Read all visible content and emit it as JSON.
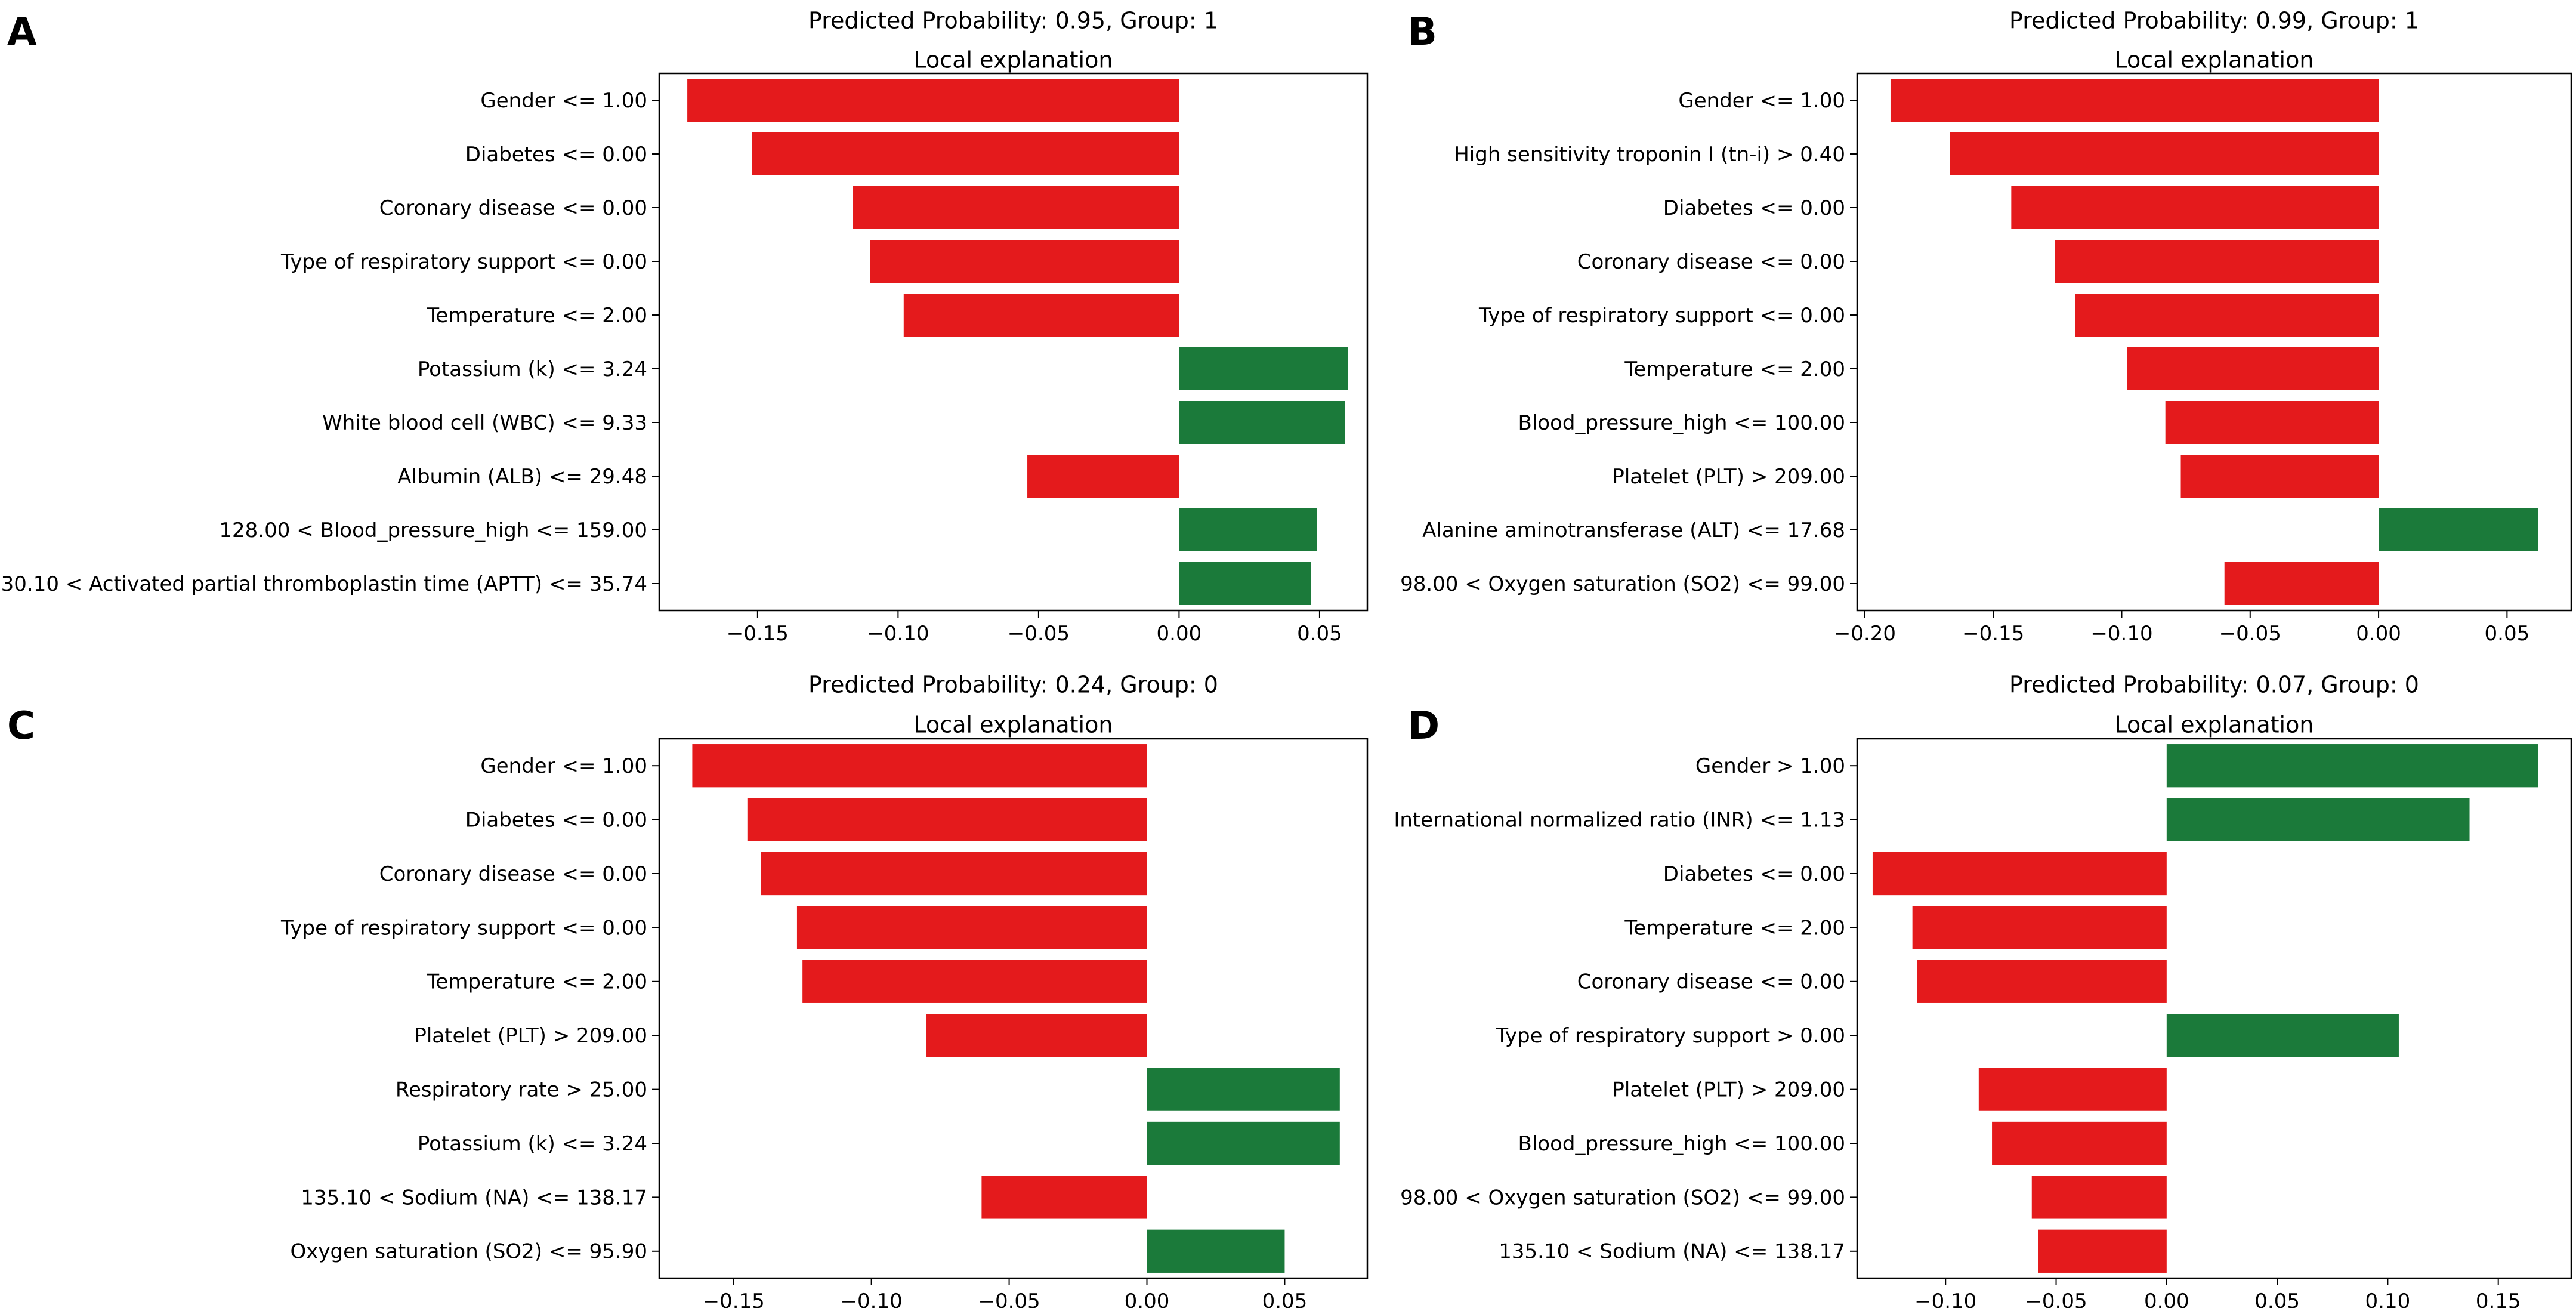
{
  "figure": {
    "colors": {
      "negative": "#e41a1c",
      "positive": "#1b7a3a",
      "axis": "#000000",
      "background": "#ffffff"
    }
  },
  "chart_data": [
    {
      "panel": "A",
      "type": "bar",
      "orientation": "horizontal",
      "title_top": "Predicted Probability: 0.95, Group: 1",
      "title": "Local explanation",
      "xlim": [
        -0.185,
        0.067
      ],
      "xticks": [
        -0.15,
        -0.1,
        -0.05,
        0.0,
        0.05
      ],
      "xtick_labels": [
        "−0.15",
        "−0.10",
        "−0.05",
        "0.00",
        "0.05"
      ],
      "categories": [
        "Gender <= 1.00",
        "Diabetes <= 0.00",
        "Coronary disease <= 0.00",
        "Type of respiratory support <= 0.00",
        "Temperature <= 2.00",
        "Potassium (k) <= 3.24",
        "White blood cell (WBC) <= 9.33",
        "Albumin (ALB) <= 29.48",
        "128.00 < Blood_pressure_high <= 159.00",
        "30.10 < Activated partial thromboplastin time (APTT) <= 35.74"
      ],
      "values": [
        -0.175,
        -0.152,
        -0.116,
        -0.11,
        -0.098,
        0.06,
        0.059,
        -0.054,
        0.049,
        0.047
      ]
    },
    {
      "panel": "B",
      "type": "bar",
      "orientation": "horizontal",
      "title_top": "Predicted Probability: 0.99, Group: 1",
      "title": "Local explanation",
      "xlim": [
        -0.203,
        0.075
      ],
      "xticks": [
        -0.2,
        -0.15,
        -0.1,
        -0.05,
        0.0,
        0.05
      ],
      "xtick_labels": [
        "−0.20",
        "−0.15",
        "−0.10",
        "−0.05",
        "0.00",
        "0.05"
      ],
      "categories": [
        "Gender <= 1.00",
        "High sensitivity troponin I (tn-i) > 0.40",
        "Diabetes <= 0.00",
        "Coronary disease <= 0.00",
        "Type of respiratory support <= 0.00",
        "Temperature <= 2.00",
        "Blood_pressure_high <= 100.00",
        "Platelet (PLT) > 209.00",
        "Alanine aminotransferase (ALT) <= 17.68",
        "98.00 < Oxygen saturation (SO2) <= 99.00"
      ],
      "values": [
        -0.19,
        -0.167,
        -0.143,
        -0.126,
        -0.118,
        -0.098,
        -0.083,
        -0.077,
        0.062,
        -0.06
      ]
    },
    {
      "panel": "C",
      "type": "bar",
      "orientation": "horizontal",
      "title_top": "Predicted Probability: 0.24, Group: 0",
      "title": "Local explanation",
      "xlim": [
        -0.177,
        0.08
      ],
      "xticks": [
        -0.15,
        -0.1,
        -0.05,
        0.0,
        0.05
      ],
      "xtick_labels": [
        "−0.15",
        "−0.10",
        "−0.05",
        "0.00",
        "0.05"
      ],
      "categories": [
        "Gender <= 1.00",
        "Diabetes <= 0.00",
        "Coronary disease <= 0.00",
        "Type of respiratory support <= 0.00",
        "Temperature <= 2.00",
        "Platelet (PLT) > 209.00",
        "Respiratory rate > 25.00",
        "Potassium (k) <= 3.24",
        "135.10 < Sodium (NA) <= 138.17",
        "Oxygen saturation (SO2) <= 95.90"
      ],
      "values": [
        -0.165,
        -0.145,
        -0.14,
        -0.127,
        -0.125,
        -0.08,
        0.07,
        0.07,
        -0.06,
        0.05
      ]
    },
    {
      "panel": "D",
      "type": "bar",
      "orientation": "horizontal",
      "title_top": "Predicted Probability: 0.07, Group: 0",
      "title": "Local explanation",
      "xlim": [
        -0.14,
        0.183
      ],
      "xticks": [
        -0.1,
        -0.05,
        0.0,
        0.05,
        0.1,
        0.15
      ],
      "xtick_labels": [
        "−0.10",
        "−0.05",
        "0.00",
        "0.05",
        "0.10",
        "0.15"
      ],
      "categories": [
        "Gender > 1.00",
        "International normalized ratio (INR) <= 1.13",
        "Diabetes <= 0.00",
        "Temperature <= 2.00",
        "Coronary disease <= 0.00",
        "Type of respiratory support > 0.00",
        "Platelet (PLT) > 209.00",
        "Blood_pressure_high <= 100.00",
        "98.00 < Oxygen saturation (SO2) <= 99.00",
        "135.10 < Sodium (NA) <= 138.17"
      ],
      "values": [
        0.168,
        0.137,
        -0.133,
        -0.115,
        -0.113,
        0.105,
        -0.085,
        -0.079,
        -0.061,
        -0.058
      ]
    }
  ]
}
